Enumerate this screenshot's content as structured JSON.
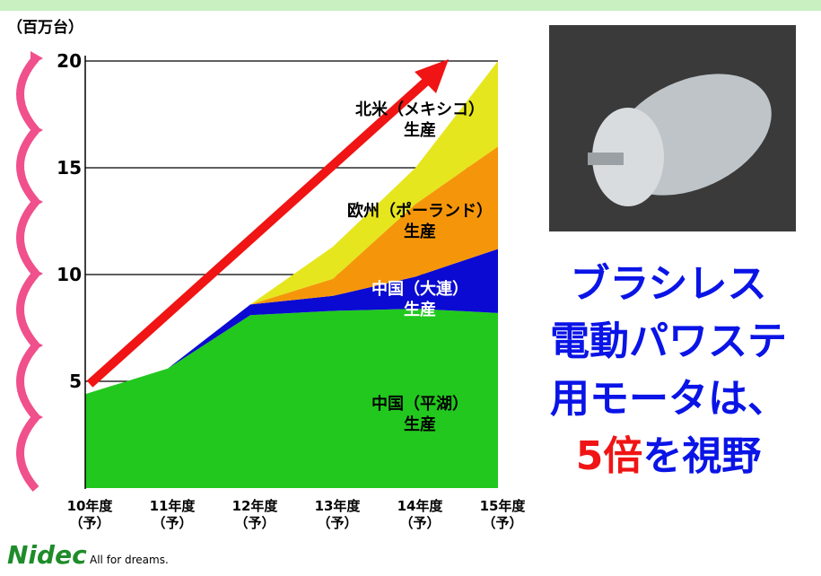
{
  "chart_data": {
    "type": "stacked-area",
    "y_label": "（百万台）",
    "categories": [
      "10年度\n（予）",
      "11年度\n（予）",
      "12年度\n（予）",
      "13年度\n（予）",
      "14年度\n（予）",
      "15年度\n（予）"
    ],
    "series": [
      {
        "name": "中国（平湖）\n生産",
        "color": "#22c81e",
        "values": [
          4.4,
          5.6,
          8.1,
          8.3,
          8.4,
          8.2
        ]
      },
      {
        "name": "中国（大連）\n生産",
        "color": "#0a0ad2",
        "values": [
          0,
          0,
          0.5,
          0.7,
          1.5,
          3.0
        ]
      },
      {
        "name": "欧州（ポーランド）\n生産",
        "color": "#f5960a",
        "values": [
          0,
          0,
          0,
          0.8,
          3.4,
          4.8
        ]
      },
      {
        "name": "北米（メキシコ）\n生産",
        "color": "#e6e61e",
        "values": [
          0,
          0,
          0,
          1.5,
          1.7,
          4.0
        ]
      }
    ],
    "ylim": [
      0,
      20
    ],
    "yticks": [
      5,
      10,
      15,
      20
    ],
    "grid": true
  },
  "headline": {
    "lines": [
      "ブラシレス",
      "電動パワステ",
      "用モータは、"
    ],
    "highlight": "5倍",
    "rest": "を視野"
  },
  "logo": {
    "brand": "Nidec",
    "slogan": "All for dreams."
  }
}
